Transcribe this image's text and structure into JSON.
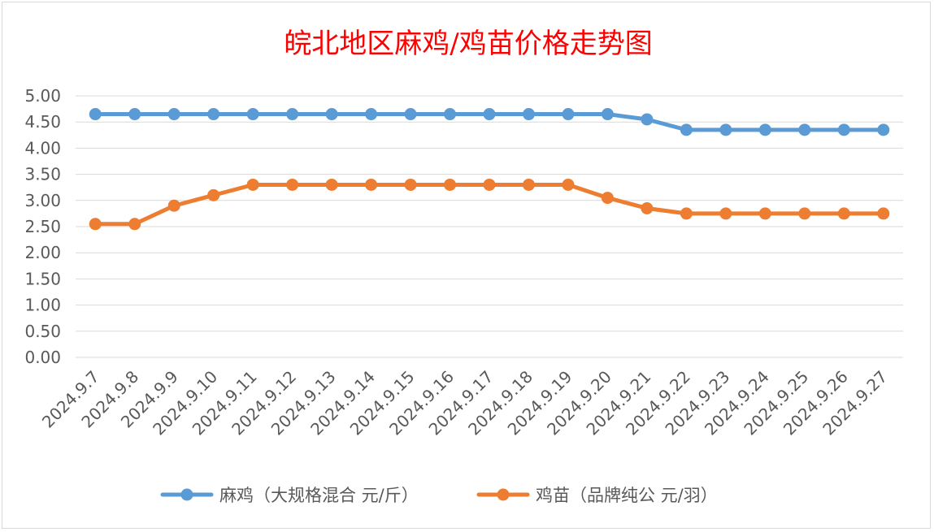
{
  "chart_data": {
    "type": "line",
    "title": "皖北地区麻鸡/鸡苗价格走势图",
    "categories": [
      "2024.9.7",
      "2024.9.8",
      "2024.9.9",
      "2024.9.10",
      "2024.9.11",
      "2024.9.12",
      "2024.9.13",
      "2024.9.14",
      "2024.9.15",
      "2024.9.16",
      "2024.9.17",
      "2024.9.18",
      "2024.9.19",
      "2024.9.20",
      "2024.9.21",
      "2024.9.22",
      "2024.9.23",
      "2024.9.24",
      "2024.9.25",
      "2024.9.26",
      "2024.9.27"
    ],
    "yticks": [
      "0.00",
      "0.50",
      "1.00",
      "1.50",
      "2.00",
      "2.50",
      "3.00",
      "3.50",
      "4.00",
      "4.50",
      "5.00"
    ],
    "ylim": [
      0,
      5
    ],
    "grid": true,
    "legend_position": "bottom",
    "series": [
      {
        "name": "麻鸡（大规格混合 元/斤）",
        "color": "#5b9bd5",
        "values": [
          4.65,
          4.65,
          4.65,
          4.65,
          4.65,
          4.65,
          4.65,
          4.65,
          4.65,
          4.65,
          4.65,
          4.65,
          4.65,
          4.65,
          4.55,
          4.35,
          4.35,
          4.35,
          4.35,
          4.35,
          4.35
        ]
      },
      {
        "name": "鸡苗（品牌纯公 元/羽）",
        "color": "#ed7d31",
        "values": [
          2.55,
          2.55,
          2.9,
          3.1,
          3.3,
          3.3,
          3.3,
          3.3,
          3.3,
          3.3,
          3.3,
          3.3,
          3.3,
          3.05,
          2.85,
          2.75,
          2.75,
          2.75,
          2.75,
          2.75,
          2.75
        ]
      }
    ]
  }
}
